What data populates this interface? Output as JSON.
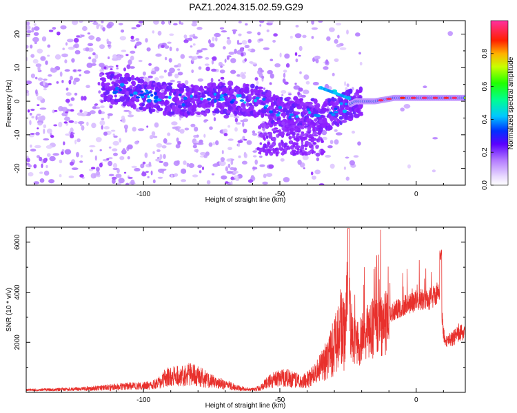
{
  "title": "PAZ1.2024.315.02.59.G29",
  "colors": {
    "snr_line": "#e8302c",
    "spectrogram_base": "#8c1aff",
    "background": "#ffffff"
  },
  "chart_data": [
    {
      "type": "heatmap",
      "name": "spectrogram",
      "title": "",
      "xlabel": "Height of straight line (km)",
      "ylabel": "Frequency (Hz)",
      "xlim": [
        -143,
        18
      ],
      "ylim": [
        -25,
        24
      ],
      "xticks": [
        -100,
        -50,
        0
      ],
      "yticks": [
        -20,
        -10,
        0,
        10,
        20
      ],
      "colorbar": {
        "label": "Normalized spectral amplitude",
        "range": [
          0.0,
          1.0
        ],
        "ticks": [
          0.0,
          0.2,
          0.4,
          0.6,
          0.8
        ],
        "tick_labels": [
          "0.0",
          "0.2",
          "0.4",
          "0.6",
          "0.8"
        ],
        "colormap": "rainbow (white-violet-purple-blue-cyan-green-yellow-red-magenta)"
      },
      "ridge": {
        "description": "main signal track (frequency in Hz vs height in km) with normalized amplitude",
        "points": [
          {
            "x": -110,
            "f": 4,
            "a": 0.3
          },
          {
            "x": -95,
            "f": 1,
            "a": 0.3
          },
          {
            "x": -80,
            "f": 0,
            "a": 0.35
          },
          {
            "x": -70,
            "f": 1,
            "a": 0.3
          },
          {
            "x": -58,
            "f": 0,
            "a": 0.35
          },
          {
            "x": -50,
            "f": -3,
            "a": 0.3
          },
          {
            "x": -40,
            "f": -4,
            "a": 0.3
          },
          {
            "x": -33,
            "f": -4,
            "a": 0.4
          },
          {
            "x": -27,
            "f": -2,
            "a": 0.45
          },
          {
            "x": -22,
            "f": 0,
            "a": 0.55
          },
          {
            "x": -15,
            "f": 0,
            "a": 0.75
          },
          {
            "x": -8,
            "f": 1,
            "a": 0.85
          },
          {
            "x": 0,
            "f": 1,
            "a": 0.9
          },
          {
            "x": 8,
            "f": 1,
            "a": 0.95
          },
          {
            "x": 18,
            "f": 1,
            "a": 0.8
          }
        ],
        "branch": [
          {
            "x": -35,
            "f": 4,
            "a": 0.4
          },
          {
            "x": -30,
            "f": 3,
            "a": 0.45
          },
          {
            "x": -25,
            "f": 1,
            "a": 0.5
          }
        ]
      }
    },
    {
      "type": "line",
      "name": "snr",
      "title": "",
      "xlabel": "Height of straight line (km)",
      "ylabel": "SNR (10 * v/v)",
      "xlim": [
        -143,
        18
      ],
      "ylim": [
        0,
        6600
      ],
      "xticks": [
        -100,
        -50,
        0
      ],
      "yticks": [
        2000,
        4000,
        6000
      ],
      "series": [
        {
          "envelope_x": [
            -143,
            -130,
            -120,
            -110,
            -105,
            -100,
            -95,
            -92,
            -88,
            -84,
            -80,
            -75,
            -72,
            -68,
            -64,
            -60,
            -57,
            -55,
            -52,
            -48,
            -45,
            -42,
            -40,
            -38,
            -35,
            -32,
            -30,
            -28,
            -26,
            -25,
            -24,
            -22,
            -20,
            -18,
            -15,
            -13,
            -10,
            -8,
            -5,
            -3,
            -1,
            0,
            2,
            4,
            6,
            8,
            9,
            10,
            11,
            12,
            14,
            16,
            18
          ],
          "envelope_y": [
            120,
            150,
            200,
            300,
            350,
            350,
            450,
            800,
            900,
            1000,
            900,
            600,
            500,
            350,
            200,
            150,
            250,
            500,
            700,
            800,
            700,
            600,
            700,
            900,
            1300,
            2000,
            2500,
            3500,
            3200,
            5000,
            3000,
            2200,
            2500,
            2800,
            3000,
            3200,
            3300,
            3500,
            3700,
            3800,
            3900,
            4000,
            4000,
            3900,
            4100,
            4300,
            4000,
            2500,
            2000,
            2100,
            2300,
            2500,
            2400
          ]
        }
      ]
    }
  ]
}
